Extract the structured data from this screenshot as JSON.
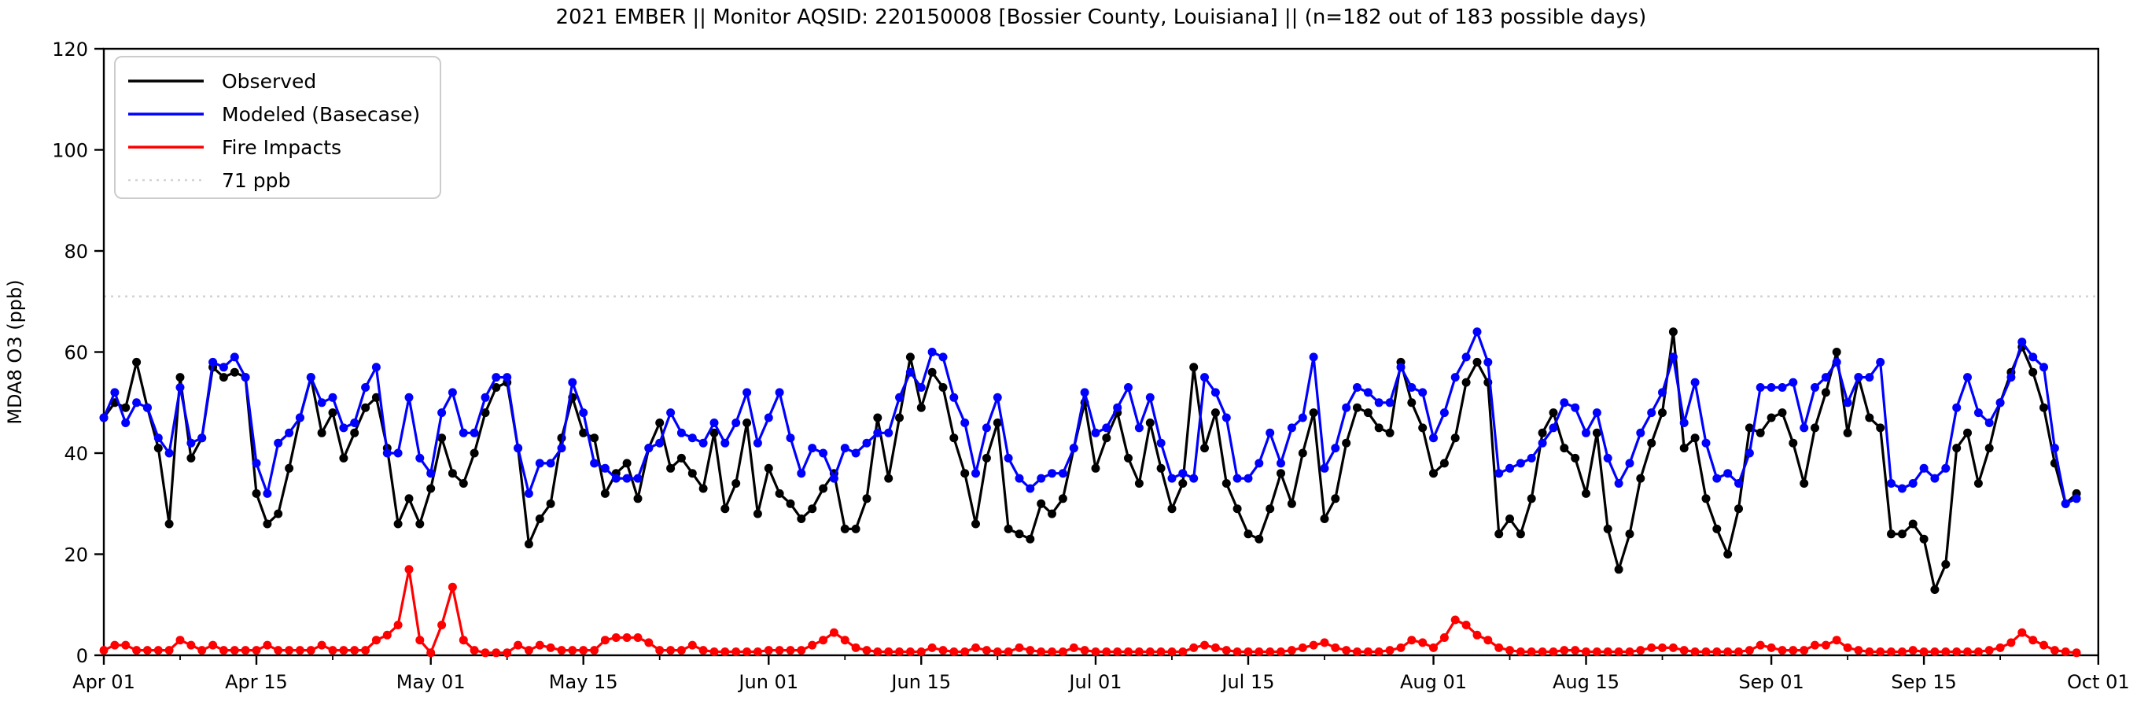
{
  "title": "2021 EMBER || Monitor AQSID: 220150008 [Bossier County, Louisiana] || (n=182 out of 183 possible days)",
  "axes": {
    "ylabel": "MDA8 O3 (ppb)",
    "ylim": [
      0,
      120
    ],
    "yticks": [
      0,
      20,
      40,
      60,
      80,
      100,
      120
    ],
    "xtick_labels": [
      "Apr 01",
      "Apr 15",
      "May 01",
      "May 15",
      "Jun 01",
      "Jun 15",
      "Jul 01",
      "Jul 15",
      "Aug 01",
      "Aug 15",
      "Sep 01",
      "Sep 15",
      "Oct 01"
    ],
    "xtick_days": [
      0,
      14,
      30,
      44,
      61,
      75,
      91,
      105,
      122,
      136,
      153,
      167,
      183
    ],
    "minor_tick_days": [
      7,
      21,
      37,
      51,
      68,
      82,
      98,
      112,
      129,
      143,
      160,
      174
    ]
  },
  "legend": {
    "entries": [
      {
        "label": "Observed",
        "color": "#000000",
        "style": "solid"
      },
      {
        "label": "Modeled (Basecase)",
        "color": "#0000ff",
        "style": "solid"
      },
      {
        "label": "Fire Impacts",
        "color": "#ff0000",
        "style": "solid"
      },
      {
        "label": "71 ppb",
        "color": "#d3d3d3",
        "style": "dotted"
      }
    ]
  },
  "chart_data": {
    "type": "line",
    "x_start_date": "2021-04-01",
    "x_end_date": "2021-09-29",
    "n_days": 182,
    "grid": false,
    "legend_position": "upper left",
    "threshold": {
      "label": "71 ppb",
      "value": 71,
      "color": "#d3d3d3"
    },
    "title": "2021 EMBER || Monitor AQSID: 220150008 [Bossier County, Louisiana] || (n=182 out of 183 possible days)",
    "xlabel": "",
    "ylabel": "MDA8 O3 (ppb)",
    "series": [
      {
        "name": "Observed",
        "color": "#000000",
        "values": [
          47,
          50,
          49,
          58,
          49,
          41,
          26,
          55,
          39,
          43,
          57,
          55,
          56,
          55,
          32,
          26,
          28,
          37,
          47,
          55,
          44,
          48,
          39,
          44,
          49,
          51,
          41,
          26,
          31,
          26,
          33,
          43,
          36,
          34,
          40,
          48,
          53,
          54,
          41,
          22,
          27,
          30,
          43,
          51,
          44,
          43,
          32,
          36,
          38,
          31,
          41,
          46,
          37,
          39,
          36,
          33,
          44,
          29,
          34,
          46,
          28,
          37,
          32,
          30,
          27,
          29,
          33,
          36,
          25,
          25,
          31,
          47,
          35,
          47,
          59,
          49,
          56,
          53,
          43,
          36,
          26,
          39,
          46,
          25,
          24,
          23,
          30,
          28,
          31,
          41,
          50,
          37,
          43,
          48,
          39,
          34,
          46,
          37,
          29,
          34,
          57,
          41,
          48,
          34,
          29,
          24,
          23,
          29,
          36,
          30,
          40,
          48,
          27,
          31,
          42,
          49,
          48,
          45,
          44,
          58,
          50,
          45,
          36,
          38,
          43,
          54,
          58,
          54,
          24,
          27,
          24,
          31,
          44,
          48,
          41,
          39,
          32,
          44,
          25,
          17,
          24,
          35,
          42,
          48,
          64,
          41,
          43,
          31,
          25,
          20,
          29,
          45,
          44,
          47,
          48,
          42,
          34,
          45,
          52,
          60,
          44,
          55,
          47,
          45,
          24,
          24,
          26,
          23,
          13,
          18,
          41,
          44,
          34,
          41,
          50,
          56,
          61,
          56,
          49,
          38,
          30,
          32
        ]
      },
      {
        "name": "Modeled (Basecase)",
        "color": "#0000ff",
        "values": [
          47,
          52,
          46,
          50,
          49,
          43,
          40,
          53,
          42,
          43,
          58,
          57,
          59,
          55,
          38,
          32,
          42,
          44,
          47,
          55,
          50,
          51,
          45,
          46,
          53,
          57,
          40,
          40,
          51,
          39,
          36,
          48,
          52,
          44,
          44,
          51,
          55,
          55,
          41,
          32,
          38,
          38,
          41,
          54,
          48,
          38,
          37,
          35,
          35,
          35,
          41,
          42,
          48,
          44,
          43,
          42,
          46,
          42,
          46,
          52,
          42,
          47,
          52,
          43,
          36,
          41,
          40,
          35,
          41,
          40,
          42,
          44,
          44,
          51,
          56,
          53,
          60,
          59,
          51,
          46,
          36,
          45,
          51,
          39,
          35,
          33,
          35,
          36,
          36,
          41,
          52,
          44,
          45,
          49,
          53,
          45,
          51,
          42,
          35,
          36,
          35,
          55,
          52,
          47,
          35,
          35,
          38,
          44,
          38,
          45,
          47,
          59,
          37,
          41,
          49,
          53,
          52,
          50,
          50,
          57,
          53,
          52,
          43,
          48,
          55,
          59,
          64,
          58,
          36,
          37,
          38,
          39,
          42,
          45,
          50,
          49,
          44,
          48,
          39,
          34,
          38,
          44,
          48,
          52,
          59,
          46,
          54,
          42,
          35,
          36,
          34,
          40,
          53,
          53,
          53,
          54,
          45,
          53,
          55,
          58,
          50,
          55,
          55,
          58,
          34,
          33,
          34,
          37,
          35,
          37,
          49,
          55,
          48,
          46,
          50,
          55,
          62,
          59,
          57,
          41,
          30,
          31
        ]
      },
      {
        "name": "Fire Impacts",
        "color": "#ff0000",
        "values": [
          1,
          2,
          2,
          1,
          1,
          1,
          1,
          3,
          2,
          1,
          2,
          1,
          1,
          1,
          1,
          2,
          1,
          1,
          1,
          1,
          2,
          1,
          1,
          1,
          1,
          3,
          4,
          6,
          17,
          3,
          0.5,
          6,
          13.5,
          3,
          1,
          0.5,
          0.5,
          0.5,
          2,
          1,
          2,
          1.5,
          1,
          1,
          1,
          1,
          3,
          3.5,
          3.5,
          3.5,
          2.5,
          1,
          1,
          1,
          2,
          1,
          0.7,
          0.7,
          0.7,
          0.7,
          0.7,
          1,
          1,
          1,
          1,
          2,
          3,
          4.5,
          3,
          1.5,
          1,
          0.7,
          0.7,
          0.7,
          0.7,
          0.7,
          1.5,
          1,
          0.7,
          0.7,
          1.5,
          1,
          0.7,
          0.7,
          1.5,
          1,
          0.7,
          0.7,
          0.7,
          1.5,
          1,
          0.7,
          0.7,
          0.7,
          0.7,
          0.7,
          0.7,
          0.7,
          0.7,
          0.7,
          1.5,
          2,
          1.5,
          1,
          0.7,
          0.7,
          0.7,
          0.7,
          0.7,
          1,
          1.5,
          2,
          2.5,
          1.5,
          1,
          0.7,
          0.7,
          0.7,
          1,
          1.5,
          3,
          2.5,
          1.5,
          3.5,
          7,
          6,
          4,
          3,
          1.5,
          1,
          0.7,
          0.7,
          0.7,
          0.7,
          1,
          1,
          0.7,
          0.7,
          0.7,
          0.7,
          0.7,
          1,
          1.5,
          1.5,
          1.5,
          1,
          0.7,
          0.7,
          0.7,
          0.7,
          0.7,
          1,
          2,
          1.5,
          1,
          1,
          1,
          2,
          2,
          3,
          1.5,
          1,
          0.7,
          0.7,
          0.7,
          0.7,
          1,
          0.7,
          0.7,
          0.7,
          0.7,
          0.7,
          0.7,
          1,
          1.5,
          2.5,
          4.5,
          3,
          2,
          1,
          0.7,
          0.5
        ]
      }
    ]
  }
}
